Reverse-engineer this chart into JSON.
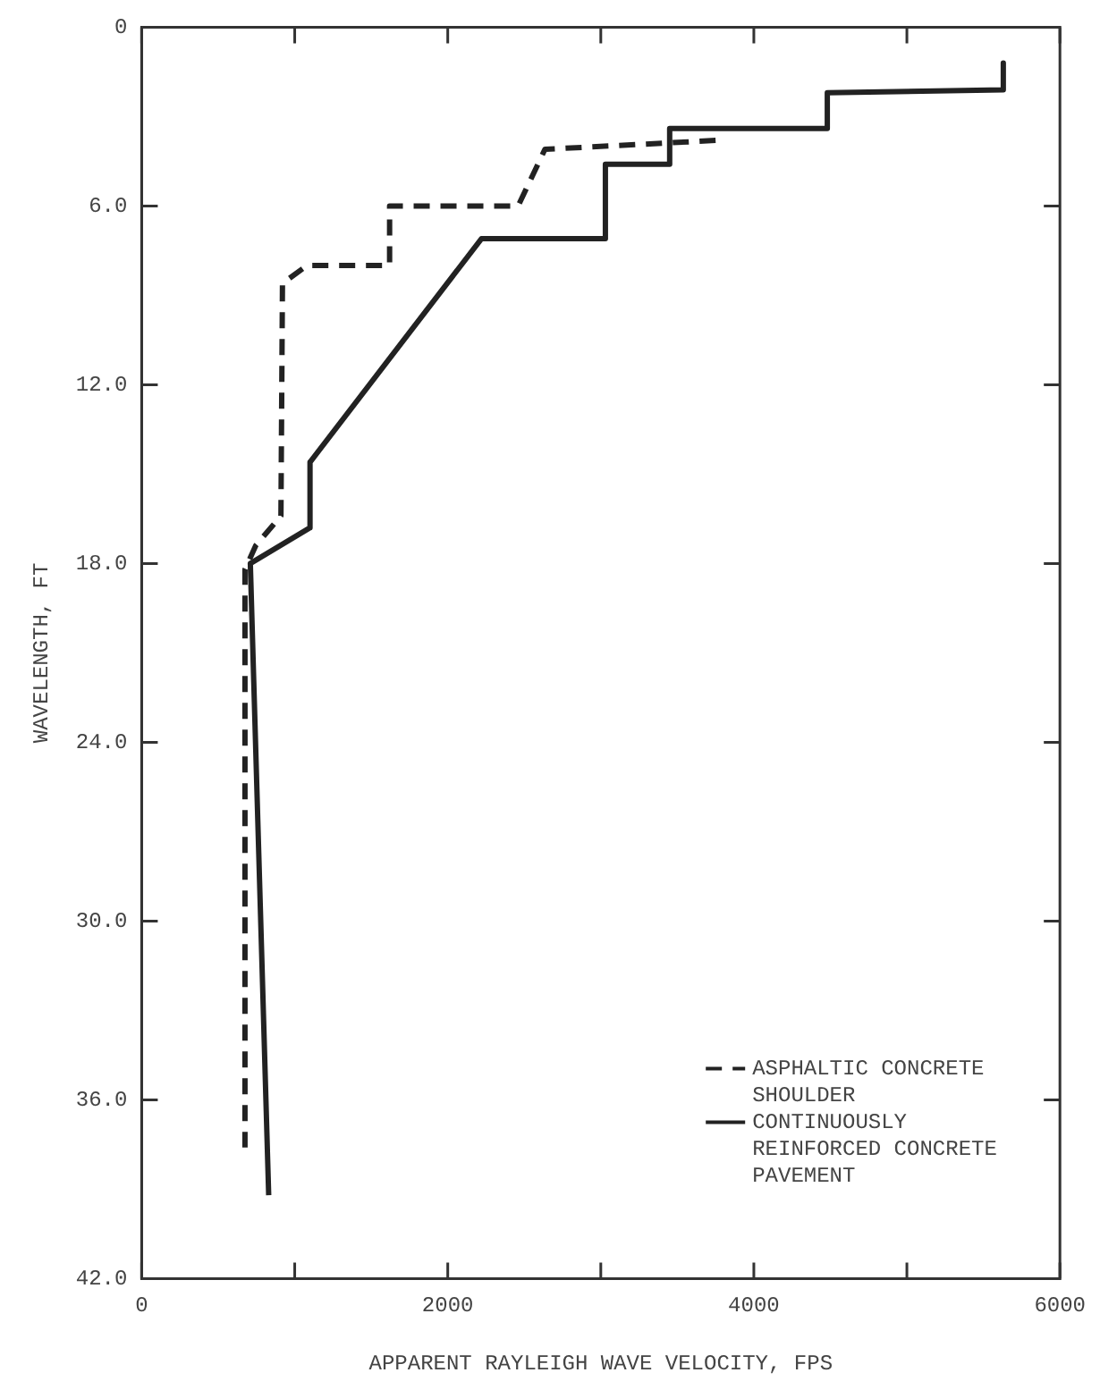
{
  "chart_data": {
    "type": "line",
    "xlabel": "APPARENT RAYLEIGH WAVE VELOCITY, FPS",
    "ylabel": "WAVELENGTH, FT",
    "xlim": [
      0,
      6000
    ],
    "xticks": [
      0,
      {
        "value": 1000,
        "label": null
      },
      2000,
      {
        "value": 3000,
        "label": null
      },
      4000,
      {
        "value": 5000,
        "label": null
      },
      6000
    ],
    "ylim": [
      42,
      0
    ],
    "yticks": [
      {
        "value": 0,
        "label": "0"
      },
      {
        "value": 6,
        "label": "6.0"
      },
      {
        "value": 12,
        "label": "12.0"
      },
      {
        "value": 18,
        "label": "18.0"
      },
      {
        "value": 24,
        "label": "24.0"
      },
      {
        "value": 30,
        "label": "30.0"
      },
      {
        "value": 36,
        "label": "36.0"
      },
      {
        "value": 42,
        "label": "42.0"
      }
    ],
    "grid": false,
    "legend": "bottom right",
    "marker": "none",
    "series": [
      {
        "name": "ASPHALTIC CONCRETE SHOULDER",
        "color": "#222222",
        "line_style": "dashed",
        "x": [
          3750,
          2635,
          2460,
          1620,
          1620,
          1080,
          920,
          910,
          745,
          675,
          675
        ],
        "values": [
          3.8,
          4.1,
          6.0,
          6.0,
          8.0,
          8.0,
          8.6,
          16.4,
          17.4,
          18.2,
          37.6
        ]
      },
      {
        "name": "CONTINUOUSLY REINFORCED CONCRETE PAVEMENT",
        "color": "#222222",
        "line_style": "solid",
        "x": [
          5630,
          5630,
          4480,
          4480,
          3450,
          3450,
          3030,
          3030,
          2220,
          1100,
          1100,
          710,
          830
        ],
        "values": [
          1.2,
          2.1,
          2.2,
          3.4,
          3.4,
          4.6,
          4.6,
          7.1,
          7.1,
          14.6,
          16.8,
          18.0,
          39.2
        ]
      }
    ]
  }
}
